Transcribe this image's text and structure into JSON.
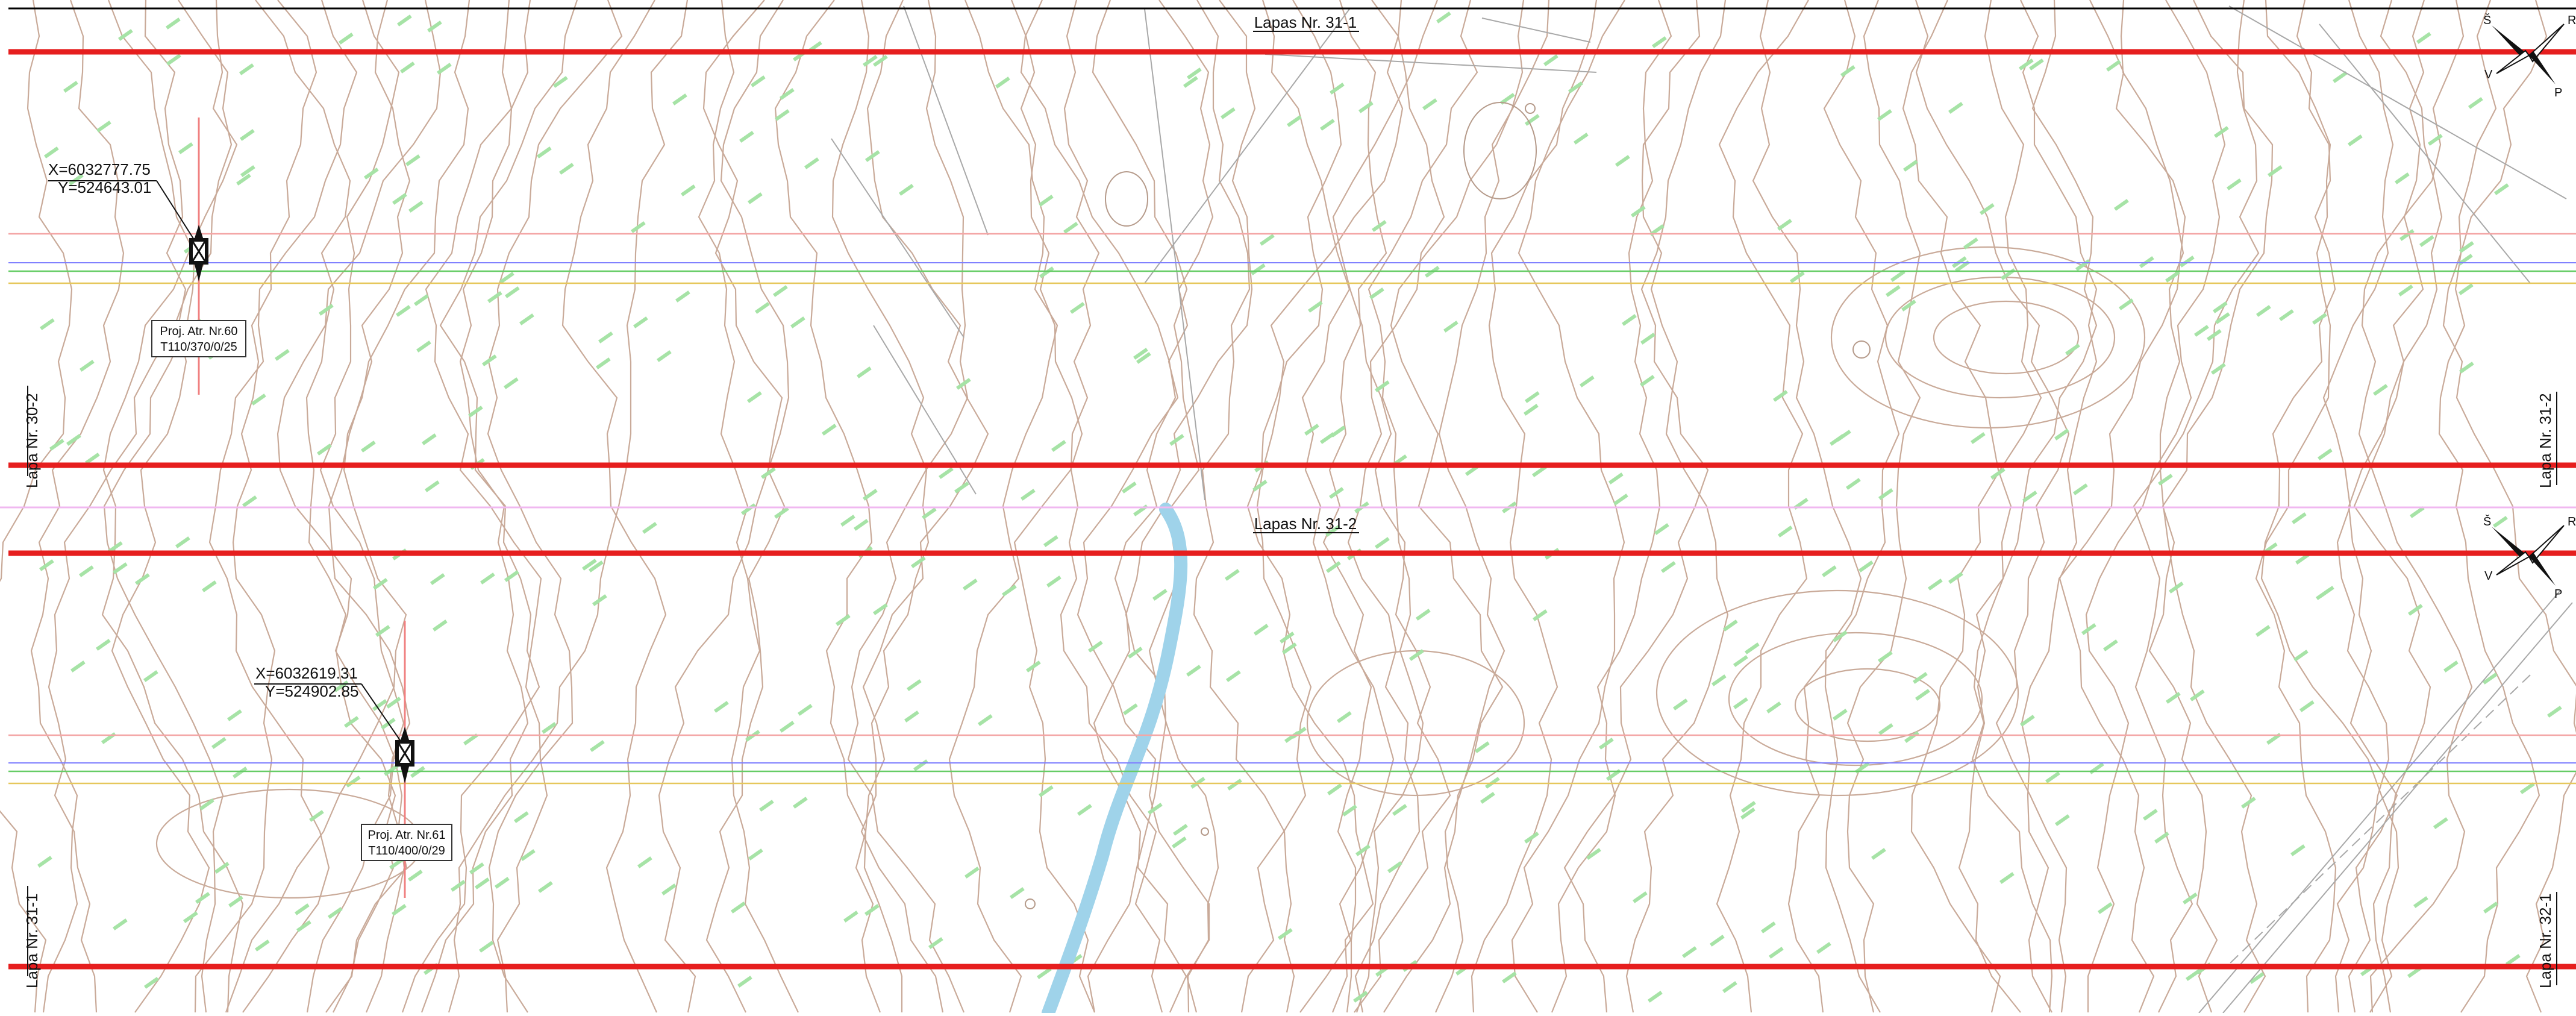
{
  "colors": {
    "corridor_red": "#e61e1e",
    "pipe_pink": "#f4a6a6",
    "pipe_green": "#66cc66",
    "pipe_blue": "#8080ff",
    "pipe_yellow": "#e6c75c",
    "contour_brown": "#c9aa99",
    "elevation_green": "#8fd98f",
    "river_blue": "#9fd3ea",
    "divider_pink": "#f0b8f0"
  },
  "sheets": [
    {
      "title": "Lapas Nr. 31-1",
      "left_label": "Lapa Nr. 30-2",
      "right_label": "Lapa Nr. 31-2",
      "compass": {
        "n": "Š",
        "e": "R",
        "w": "V",
        "s": "P"
      },
      "marker": {
        "coord_x": "X=6032777.75",
        "coord_y": "Y=524643.01",
        "label_line1": "Proj. Atr. Nr.60",
        "label_line2": "T110/370/0/25"
      }
    },
    {
      "title": "Lapas Nr. 31-2",
      "left_label": "Lapa Nr. 31-1",
      "right_label": "Lapa Nr. 32-1",
      "compass": {
        "n": "Š",
        "e": "R",
        "w": "V",
        "s": "P"
      },
      "marker": {
        "coord_x": "X=6032619.31",
        "coord_y": "Y=524902.85",
        "label_line1": "Proj. Atr. Nr.61",
        "label_line2": "T110/400/0/29"
      }
    }
  ]
}
